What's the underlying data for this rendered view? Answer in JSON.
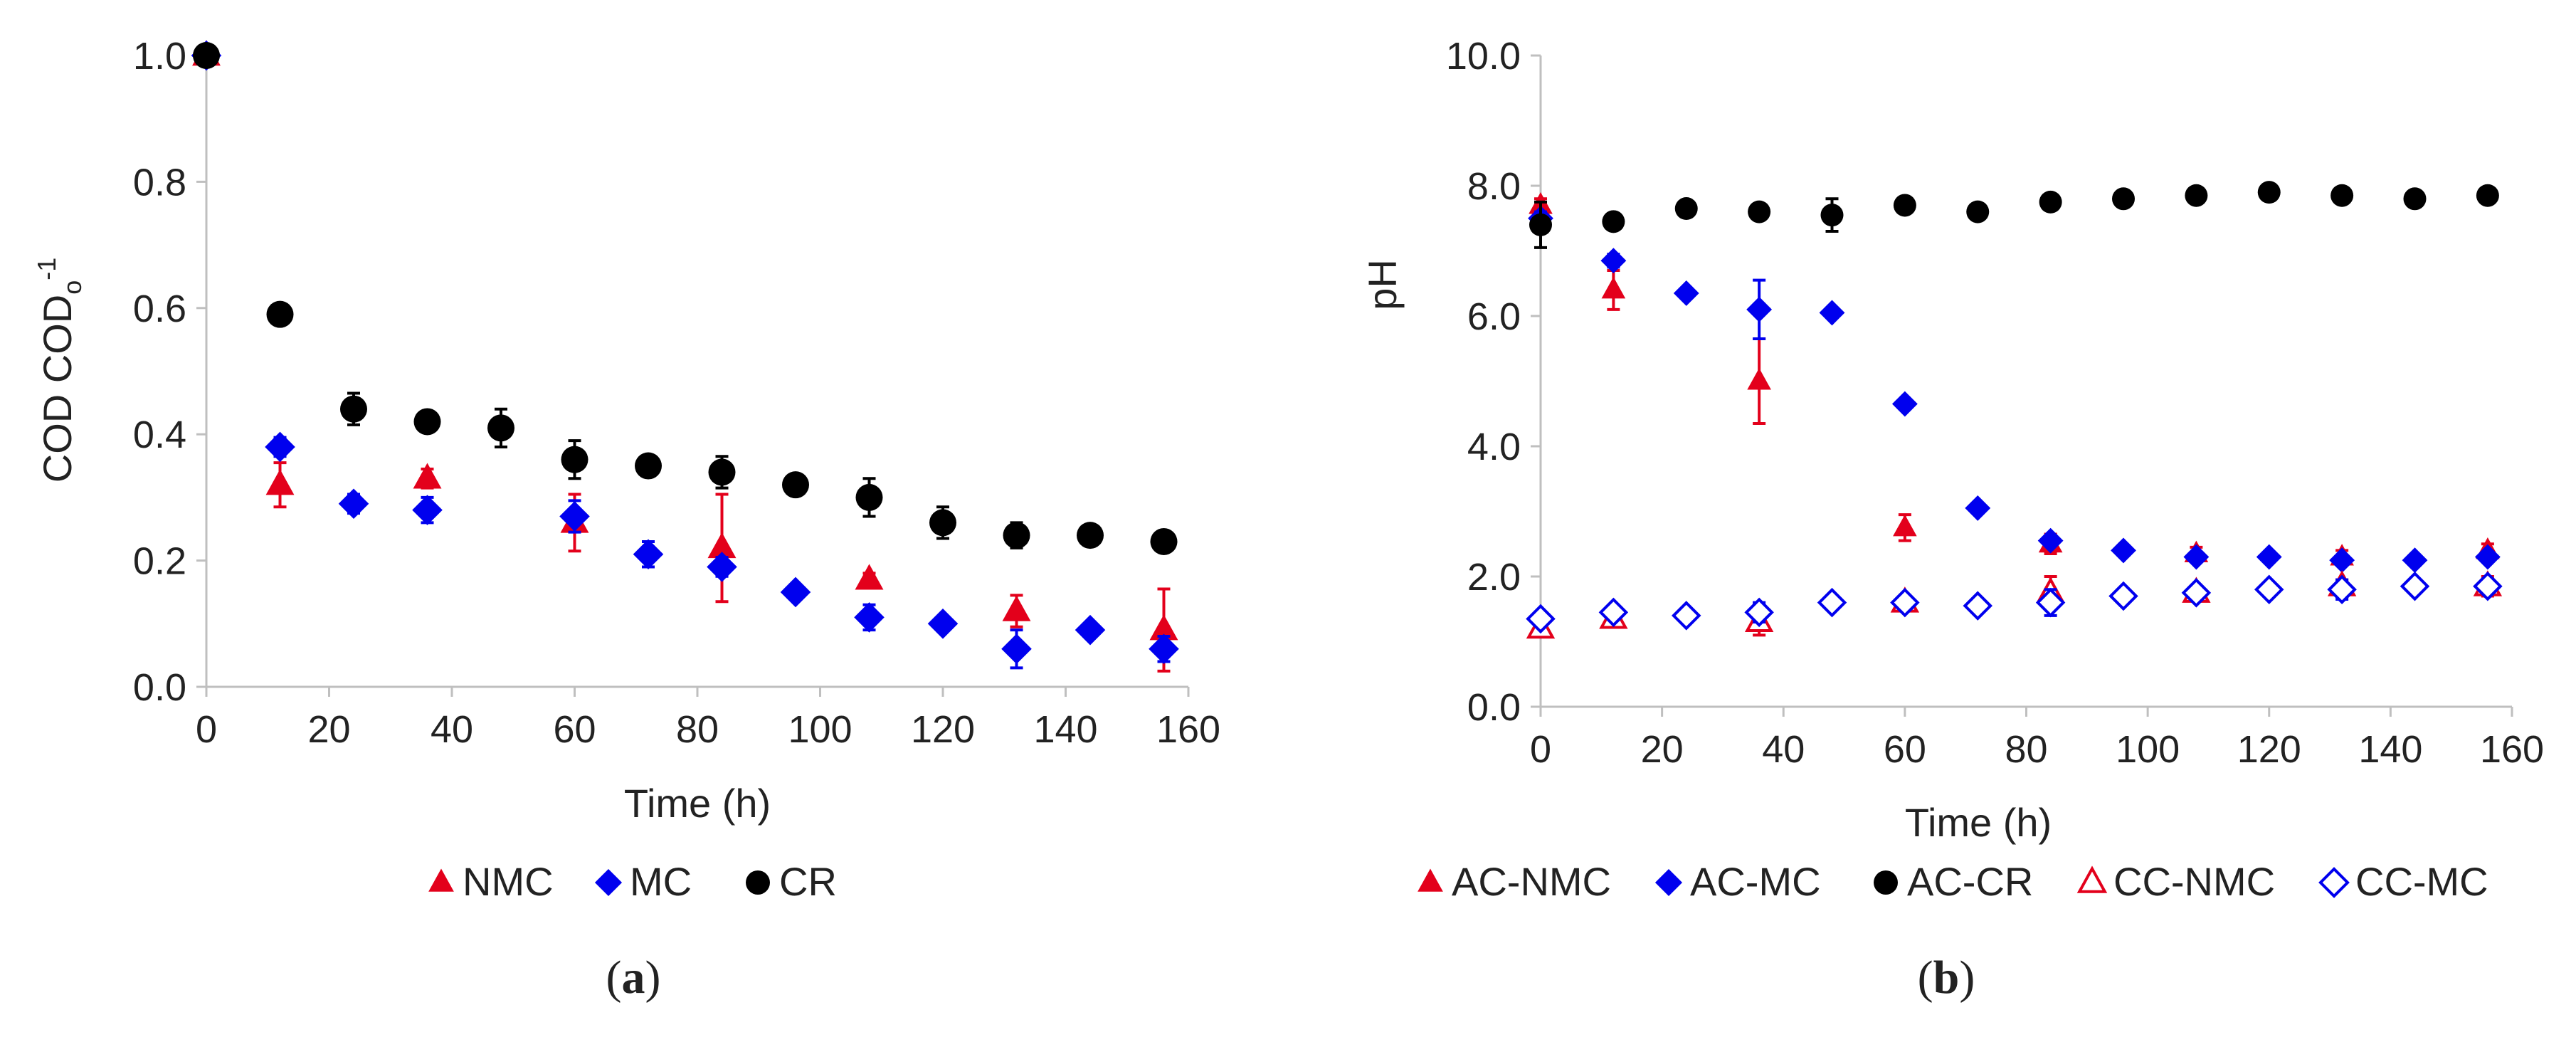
{
  "chart_data": [
    {
      "type": "scatter",
      "panel_label": "(a)",
      "xlabel": "Time (h)",
      "ylabel_main": "COD COD",
      "ylabel_sub": "o",
      "ylabel_sup": "-1",
      "xlim": [
        0,
        160
      ],
      "ylim": [
        0,
        1.0
      ],
      "xticks": [
        "0",
        "20",
        "40",
        "60",
        "80",
        "100",
        "120",
        "140",
        "160"
      ],
      "yticks": [
        "0.0",
        "0.2",
        "0.4",
        "0.6",
        "0.8",
        "1.0"
      ],
      "legend_position": "bottom",
      "series": [
        {
          "name": "NMC",
          "marker": "triangle",
          "filled": true,
          "color": "#e3001b",
          "points": [
            {
              "x": 0,
              "y": 1.0,
              "err": 0
            },
            {
              "x": 12,
              "y": 0.32,
              "err": 0.035
            },
            {
              "x": 36,
              "y": 0.33,
              "err": 0.015
            },
            {
              "x": 60,
              "y": 0.26,
              "err": 0.045
            },
            {
              "x": 84,
              "y": 0.22,
              "err": 0.085
            },
            {
              "x": 108,
              "y": 0.17,
              "err": 0.01
            },
            {
              "x": 132,
              "y": 0.12,
              "err": 0.025
            },
            {
              "x": 156,
              "y": 0.09,
              "err": 0.065
            }
          ]
        },
        {
          "name": "MC",
          "marker": "diamond",
          "filled": true,
          "color": "#0000ee",
          "points": [
            {
              "x": 0,
              "y": 1.0,
              "err": 0
            },
            {
              "x": 12,
              "y": 0.38,
              "err": 0.015
            },
            {
              "x": 24,
              "y": 0.29,
              "err": 0.015
            },
            {
              "x": 36,
              "y": 0.28,
              "err": 0.02
            },
            {
              "x": 60,
              "y": 0.27,
              "err": 0.025
            },
            {
              "x": 72,
              "y": 0.21,
              "err": 0.02
            },
            {
              "x": 84,
              "y": 0.19,
              "err": 0.015
            },
            {
              "x": 96,
              "y": 0.15,
              "err": 0.01
            },
            {
              "x": 108,
              "y": 0.11,
              "err": 0.02
            },
            {
              "x": 120,
              "y": 0.1,
              "err": 0.01
            },
            {
              "x": 132,
              "y": 0.06,
              "err": 0.03
            },
            {
              "x": 144,
              "y": 0.09,
              "err": 0.01
            },
            {
              "x": 156,
              "y": 0.06,
              "err": 0.02
            }
          ]
        },
        {
          "name": "CR",
          "marker": "circle",
          "filled": true,
          "color": "#000000",
          "points": [
            {
              "x": 0,
              "y": 1.0,
              "err": 0
            },
            {
              "x": 12,
              "y": 0.59,
              "err": 0.01
            },
            {
              "x": 24,
              "y": 0.44,
              "err": 0.025
            },
            {
              "x": 36,
              "y": 0.42,
              "err": 0.01
            },
            {
              "x": 48,
              "y": 0.41,
              "err": 0.03
            },
            {
              "x": 60,
              "y": 0.36,
              "err": 0.03
            },
            {
              "x": 72,
              "y": 0.35,
              "err": 0.01
            },
            {
              "x": 84,
              "y": 0.34,
              "err": 0.025
            },
            {
              "x": 96,
              "y": 0.32,
              "err": 0.01
            },
            {
              "x": 108,
              "y": 0.3,
              "err": 0.03
            },
            {
              "x": 120,
              "y": 0.26,
              "err": 0.025
            },
            {
              "x": 132,
              "y": 0.24,
              "err": 0.02
            },
            {
              "x": 144,
              "y": 0.24,
              "err": 0.01
            },
            {
              "x": 156,
              "y": 0.23,
              "err": 0.015
            }
          ]
        }
      ]
    },
    {
      "type": "scatter",
      "panel_label": "(b)",
      "xlabel": "Time (h)",
      "ylabel_main": "pH",
      "xlim": [
        0,
        160
      ],
      "ylim": [
        0,
        10.0
      ],
      "xticks": [
        "0",
        "20",
        "40",
        "60",
        "80",
        "100",
        "120",
        "140",
        "160"
      ],
      "yticks": [
        "0.0",
        "2.0",
        "4.0",
        "6.0",
        "8.0",
        "10.0"
      ],
      "legend_position": "bottom",
      "series": [
        {
          "name": "AC-NMC",
          "marker": "triangle",
          "filled": true,
          "color": "#e3001b",
          "points": [
            {
              "x": 0,
              "y": 7.7,
              "err": 0.1
            },
            {
              "x": 12,
              "y": 6.4,
              "err": 0.3
            },
            {
              "x": 36,
              "y": 5.0,
              "err": 0.65
            },
            {
              "x": 60,
              "y": 2.75,
              "err": 0.2
            },
            {
              "x": 84,
              "y": 2.5,
              "err": 0.15
            },
            {
              "x": 108,
              "y": 2.35,
              "err": 0.1
            },
            {
              "x": 132,
              "y": 2.3,
              "err": 0.1
            },
            {
              "x": 156,
              "y": 2.4,
              "err": 0.1
            }
          ]
        },
        {
          "name": "AC-MC",
          "marker": "diamond",
          "filled": true,
          "color": "#0000ee",
          "points": [
            {
              "x": 0,
              "y": 7.5,
              "err": 0.1
            },
            {
              "x": 12,
              "y": 6.85,
              "err": 0.1
            },
            {
              "x": 24,
              "y": 6.35,
              "err": 0.05
            },
            {
              "x": 36,
              "y": 6.1,
              "err": 0.45
            },
            {
              "x": 48,
              "y": 6.05,
              "err": 0.05
            },
            {
              "x": 60,
              "y": 4.65,
              "err": 0.05
            },
            {
              "x": 72,
              "y": 3.05,
              "err": 0.05
            },
            {
              "x": 84,
              "y": 2.55,
              "err": 0.05
            },
            {
              "x": 96,
              "y": 2.4,
              "err": 0.05
            },
            {
              "x": 108,
              "y": 2.3,
              "err": 0.05
            },
            {
              "x": 120,
              "y": 2.3,
              "err": 0.05
            },
            {
              "x": 132,
              "y": 2.25,
              "err": 0.05
            },
            {
              "x": 144,
              "y": 2.25,
              "err": 0.05
            },
            {
              "x": 156,
              "y": 2.3,
              "err": 0.05
            }
          ]
        },
        {
          "name": "AC-CR",
          "marker": "circle",
          "filled": true,
          "color": "#000000",
          "points": [
            {
              "x": 0,
              "y": 7.4,
              "err": 0.35
            },
            {
              "x": 12,
              "y": 7.45,
              "err": 0.05
            },
            {
              "x": 24,
              "y": 7.65,
              "err": 0.05
            },
            {
              "x": 36,
              "y": 7.6,
              "err": 0.05
            },
            {
              "x": 48,
              "y": 7.55,
              "err": 0.25
            },
            {
              "x": 60,
              "y": 7.7,
              "err": 0.05
            },
            {
              "x": 72,
              "y": 7.6,
              "err": 0.05
            },
            {
              "x": 84,
              "y": 7.75,
              "err": 0.05
            },
            {
              "x": 96,
              "y": 7.8,
              "err": 0.05
            },
            {
              "x": 108,
              "y": 7.85,
              "err": 0.05
            },
            {
              "x": 120,
              "y": 7.9,
              "err": 0.05
            },
            {
              "x": 132,
              "y": 7.85,
              "err": 0.05
            },
            {
              "x": 144,
              "y": 7.8,
              "err": 0.05
            },
            {
              "x": 156,
              "y": 7.85,
              "err": 0.05
            }
          ]
        },
        {
          "name": "CC-NMC",
          "marker": "triangle",
          "filled": false,
          "color": "#e3001b",
          "points": [
            {
              "x": 0,
              "y": 1.2,
              "err": 0.1
            },
            {
              "x": 12,
              "y": 1.35,
              "err": 0.1
            },
            {
              "x": 36,
              "y": 1.3,
              "err": 0.2
            },
            {
              "x": 60,
              "y": 1.6,
              "err": 0.1
            },
            {
              "x": 84,
              "y": 1.75,
              "err": 0.25
            },
            {
              "x": 108,
              "y": 1.75,
              "err": 0.1
            },
            {
              "x": 132,
              "y": 1.85,
              "err": 0.1
            },
            {
              "x": 156,
              "y": 1.85,
              "err": 0.15
            }
          ]
        },
        {
          "name": "CC-MC",
          "marker": "diamond",
          "filled": false,
          "color": "#0000ee",
          "points": [
            {
              "x": 0,
              "y": 1.35,
              "err": 0.05
            },
            {
              "x": 12,
              "y": 1.45,
              "err": 0.05
            },
            {
              "x": 24,
              "y": 1.4,
              "err": 0.05
            },
            {
              "x": 36,
              "y": 1.45,
              "err": 0.15
            },
            {
              "x": 48,
              "y": 1.6,
              "err": 0.05
            },
            {
              "x": 60,
              "y": 1.6,
              "err": 0.1
            },
            {
              "x": 72,
              "y": 1.55,
              "err": 0.05
            },
            {
              "x": 84,
              "y": 1.6,
              "err": 0.2
            },
            {
              "x": 96,
              "y": 1.7,
              "err": 0.05
            },
            {
              "x": 108,
              "y": 1.75,
              "err": 0.1
            },
            {
              "x": 120,
              "y": 1.8,
              "err": 0.05
            },
            {
              "x": 132,
              "y": 1.8,
              "err": 0.15
            },
            {
              "x": 144,
              "y": 1.85,
              "err": 0.05
            },
            {
              "x": 156,
              "y": 1.85,
              "err": 0.1
            }
          ]
        }
      ]
    }
  ]
}
